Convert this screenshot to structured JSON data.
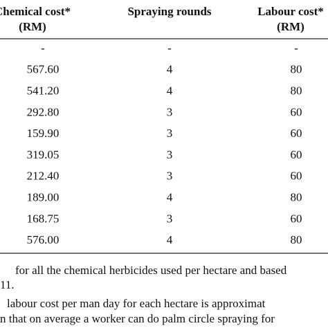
{
  "table": {
    "header": [
      [
        "Chemical cost*",
        "(RM)"
      ],
      [
        "Spraying rounds"
      ],
      [
        "Labour cost*",
        "(RM)"
      ]
    ],
    "rows": [
      [
        "-",
        "-",
        "-"
      ],
      [
        "567.60",
        "4",
        "80"
      ],
      [
        "541.20",
        "4",
        "80"
      ],
      [
        "292.80",
        "3",
        "60"
      ],
      [
        "159.90",
        "3",
        "60"
      ],
      [
        "319.05",
        "3",
        "60"
      ],
      [
        "212.40",
        "3",
        "60"
      ],
      [
        "189.00",
        "4",
        "80"
      ],
      [
        "168.75",
        "3",
        "60"
      ],
      [
        "576.00",
        "4",
        "80"
      ]
    ]
  },
  "footnotes": [
    "for all the chemical herbicides used per hectare and based",
    "11.",
    "labour cost per man day for each hectare is approximat",
    "n that on average a worker can do palm circle spraying for"
  ]
}
